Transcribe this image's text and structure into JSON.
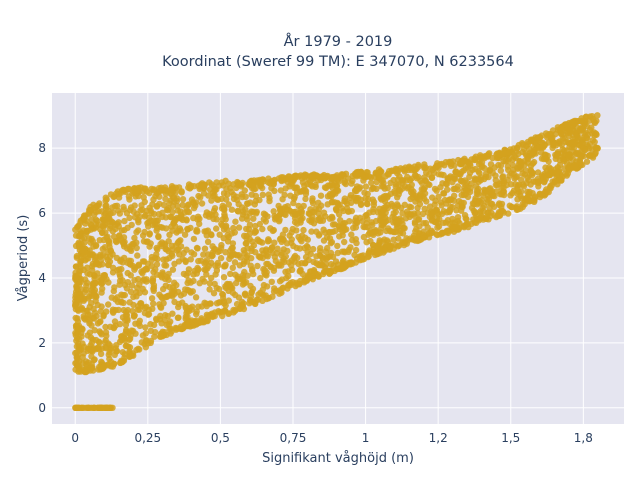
{
  "chart_data": {
    "type": "scatter",
    "title_line1": "År 1979 - 2019",
    "title_line2": "Koordinat (Sweref 99 TM): E 347070, N 6233564",
    "xlabel": "Signifikant våghöjd (m)",
    "ylabel": "Vågperiod (s)",
    "xlim": [
      -0.08,
      1.89
    ],
    "ylim": [
      -0.5,
      9.7
    ],
    "x_ticks": [
      {
        "value": 0,
        "label": "0"
      },
      {
        "value": 0.25,
        "label": "0,25"
      },
      {
        "value": 0.5,
        "label": "0,5"
      },
      {
        "value": 0.75,
        "label": "0,75"
      },
      {
        "value": 1,
        "label": "1"
      },
      {
        "value": 1.25,
        "label": "1,2"
      },
      {
        "value": 1.5,
        "label": "1,5"
      },
      {
        "value": 1.75,
        "label": "1,8"
      }
    ],
    "y_ticks": [
      {
        "value": 0,
        "label": "0"
      },
      {
        "value": 2,
        "label": "2"
      },
      {
        "value": 4,
        "label": "4"
      },
      {
        "value": 6,
        "label": "6"
      },
      {
        "value": 8,
        "label": "8"
      }
    ],
    "grid": true,
    "colors": {
      "marker": "#d4a21f",
      "plot_background": "#e5e5f0",
      "grid": "#ffffff"
    },
    "series": [
      {
        "envelope": [
          {
            "x": 0.0,
            "y_min": 1.1,
            "y_max": 5.5
          },
          {
            "x": 0.05,
            "y_min": 1.1,
            "y_max": 6.2
          },
          {
            "x": 0.1,
            "y_min": 1.2,
            "y_max": 6.5
          },
          {
            "x": 0.15,
            "y_min": 1.3,
            "y_max": 6.7
          },
          {
            "x": 0.2,
            "y_min": 1.6,
            "y_max": 6.8
          },
          {
            "x": 0.25,
            "y_min": 1.9,
            "y_max": 6.8
          },
          {
            "x": 0.3,
            "y_min": 2.2,
            "y_max": 6.8
          },
          {
            "x": 0.4,
            "y_min": 2.5,
            "y_max": 6.9
          },
          {
            "x": 0.5,
            "y_min": 2.8,
            "y_max": 7.0
          },
          {
            "x": 0.6,
            "y_min": 3.1,
            "y_max": 7.0
          },
          {
            "x": 0.7,
            "y_min": 3.5,
            "y_max": 7.1
          },
          {
            "x": 0.8,
            "y_min": 3.9,
            "y_max": 7.2
          },
          {
            "x": 0.9,
            "y_min": 4.2,
            "y_max": 7.2
          },
          {
            "x": 1.0,
            "y_min": 4.6,
            "y_max": 7.3
          },
          {
            "x": 1.1,
            "y_min": 4.9,
            "y_max": 7.4
          },
          {
            "x": 1.2,
            "y_min": 5.2,
            "y_max": 7.5
          },
          {
            "x": 1.3,
            "y_min": 5.4,
            "y_max": 7.6
          },
          {
            "x": 1.4,
            "y_min": 5.7,
            "y_max": 7.8
          },
          {
            "x": 1.5,
            "y_min": 6.0,
            "y_max": 8.0
          },
          {
            "x": 1.6,
            "y_min": 6.4,
            "y_max": 8.4
          },
          {
            "x": 1.7,
            "y_min": 7.2,
            "y_max": 8.8
          },
          {
            "x": 1.8,
            "y_min": 7.8,
            "y_max": 9.1
          }
        ],
        "zero_cluster": {
          "x_min": 0.0,
          "x_max": 0.13,
          "y": 0
        }
      }
    ]
  }
}
